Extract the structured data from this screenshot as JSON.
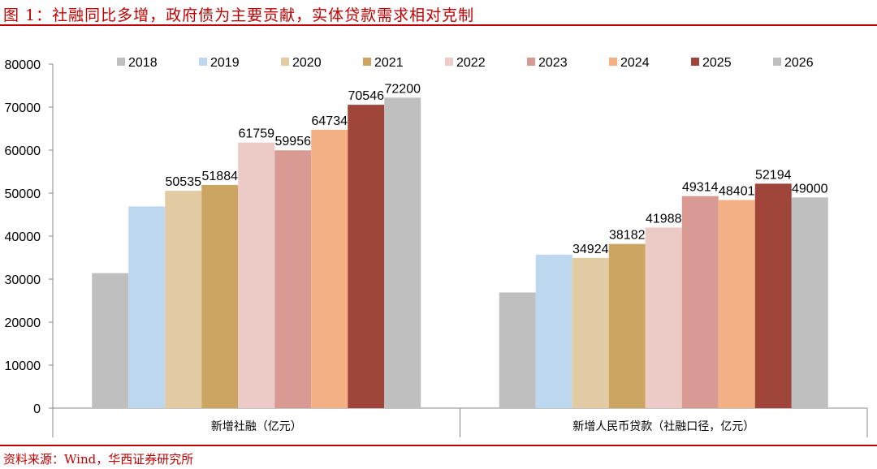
{
  "header": {
    "title": "图 1：社融同比多增，政府债为主要贡献，实体贷款需求相对克制"
  },
  "footer": {
    "source": "资料来源：Wind，华西证券研究所"
  },
  "chart_data": {
    "type": "bar",
    "title": "",
    "xlabel": "",
    "ylabel": "",
    "ylim": [
      0,
      80000
    ],
    "yticks": [
      0,
      10000,
      20000,
      30000,
      40000,
      50000,
      60000,
      70000,
      80000
    ],
    "grid": false,
    "legend_position": "top",
    "categories": [
      "新增社融（亿元）",
      "新增人民币贷款（社融口径，亿元）"
    ],
    "series": [
      {
        "name": "2018",
        "color": "#bfbfbf",
        "values": [
          31400,
          26900
        ],
        "labels": [
          "",
          ""
        ]
      },
      {
        "name": "2019",
        "color": "#bdd7ee",
        "values": [
          46900,
          35700
        ],
        "labels": [
          "",
          ""
        ]
      },
      {
        "name": "2020",
        "color": "#e2cba3",
        "values": [
          50535,
          34924
        ],
        "labels": [
          "50535",
          "34924"
        ]
      },
      {
        "name": "2021",
        "color": "#cca562",
        "values": [
          51884,
          38182
        ],
        "labels": [
          "51884",
          "38182"
        ]
      },
      {
        "name": "2022",
        "color": "#eccac6",
        "values": [
          61759,
          41988
        ],
        "labels": [
          "61759",
          "41988"
        ]
      },
      {
        "name": "2023",
        "color": "#d99a94",
        "values": [
          59956,
          49314
        ],
        "labels": [
          "59956",
          "49314"
        ]
      },
      {
        "name": "2024",
        "color": "#f3b085",
        "values": [
          64734,
          48401
        ],
        "labels": [
          "64734",
          "48401"
        ]
      },
      {
        "name": "2025",
        "color": "#a0453a",
        "values": [
          70546,
          52194
        ],
        "labels": [
          "70546",
          "52194"
        ]
      },
      {
        "name": "2026",
        "color": "#bfbfbf",
        "values": [
          72200,
          49000
        ],
        "labels": [
          "72200",
          "49000"
        ]
      }
    ]
  }
}
